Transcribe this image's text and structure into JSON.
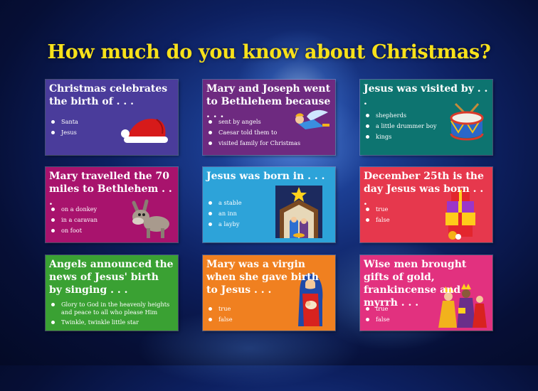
{
  "title": "How much do you know about Christmas?",
  "cards": [
    {
      "question": "Christmas celebrates the birth of . . .",
      "options": [
        "Santa",
        "Jesus"
      ],
      "art": "santa-hat-icon",
      "color": "#4a3c9b"
    },
    {
      "question": "Mary and Joseph went to Bethlehem because . . .",
      "options": [
        "sent by angels",
        "Caesar told them to",
        "visited family for Christmas"
      ],
      "art": "angel-icon",
      "color": "#6e2a80"
    },
    {
      "question": "Jesus was visited by . . .",
      "options": [
        "shepherds",
        "a little drummer boy",
        "kings"
      ],
      "art": "drum-icon",
      "color": "#0d7470"
    },
    {
      "question": "Mary travelled the 70 miles to Bethlehem . . .",
      "options": [
        "on a donkey",
        "in a caravan",
        "on foot"
      ],
      "art": "donkey-icon",
      "color": "#a8136d"
    },
    {
      "question": "Jesus was born in . . .",
      "options": [
        "a stable",
        "an inn",
        "a layby"
      ],
      "art": "nativity-icon",
      "color": "#2da3d9"
    },
    {
      "question": "December 25th is the day Jesus was born . . .",
      "options": [
        "true",
        "false"
      ],
      "art": "presents-icon",
      "color": "#e6384d"
    },
    {
      "question": "Angels announced the news of Jesus' birth by singing . . .",
      "options": [
        "Glory to God in the heavenly heights and peace to all who please Him",
        "Twinkle, twinkle little star"
      ],
      "art": "",
      "color": "#3aa133"
    },
    {
      "question": "Mary was a virgin when she gave birth to Jesus . . .",
      "options": [
        "true",
        "false"
      ],
      "art": "mary-icon",
      "color": "#f08020"
    },
    {
      "question": "Wise men  brought gifts of gold, frankincense and myrrh . . .",
      "options": [
        "true",
        "false"
      ],
      "art": "wise-men-icon",
      "color": "#e2317f"
    }
  ]
}
